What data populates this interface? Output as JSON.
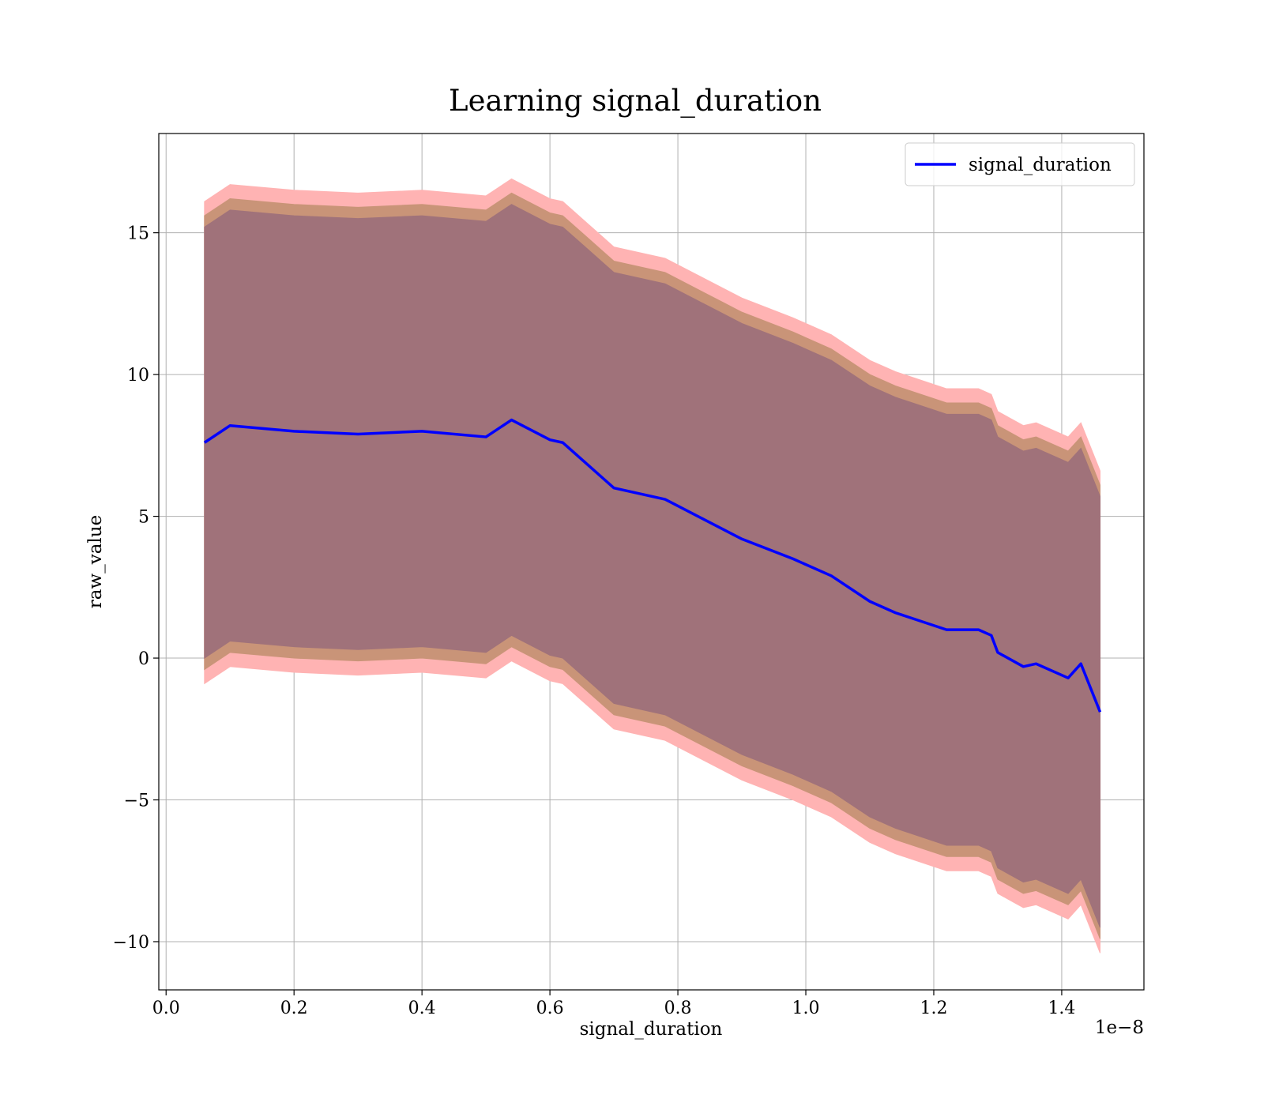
{
  "chart_data": {
    "type": "line",
    "title": "Learning signal_duration",
    "xlabel": "signal_duration",
    "ylabel": "raw_value",
    "x_offset_text": "1e−8",
    "x": [
      0.06,
      0.1,
      0.2,
      0.3,
      0.4,
      0.5,
      0.54,
      0.6,
      0.62,
      0.66,
      0.7,
      0.78,
      0.84,
      0.9,
      0.98,
      1.04,
      1.1,
      1.14,
      1.22,
      1.27,
      1.29,
      1.3,
      1.34,
      1.36,
      1.41,
      1.43,
      1.46
    ],
    "series": [
      {
        "name": "signal_duration",
        "color": "#0000ff",
        "values": [
          7.6,
          8.2,
          8.0,
          7.9,
          8.0,
          7.8,
          8.4,
          7.7,
          7.6,
          6.8,
          6.0,
          5.6,
          4.9,
          4.2,
          3.5,
          2.9,
          2.0,
          1.6,
          1.0,
          1.0,
          0.8,
          0.2,
          -0.3,
          -0.2,
          -0.7,
          -0.2,
          -1.9
        ]
      }
    ],
    "bands": [
      {
        "color": "#ffb3b3",
        "upper": [
          16.1,
          16.7,
          16.5,
          16.4,
          16.5,
          16.3,
          16.9,
          16.2,
          16.1,
          15.3,
          14.5,
          14.1,
          13.4,
          12.7,
          12.0,
          11.4,
          10.5,
          10.1,
          9.5,
          9.5,
          9.3,
          8.7,
          8.2,
          8.3,
          7.8,
          8.3,
          6.6
        ],
        "lower": [
          -0.9,
          -0.3,
          -0.5,
          -0.6,
          -0.5,
          -0.7,
          -0.1,
          -0.8,
          -0.9,
          -1.7,
          -2.5,
          -2.9,
          -3.6,
          -4.3,
          -5.0,
          -5.6,
          -6.5,
          -6.9,
          -7.5,
          -7.5,
          -7.7,
          -8.3,
          -8.8,
          -8.7,
          -9.2,
          -8.7,
          -10.4
        ]
      },
      {
        "color": "#c99478",
        "upper": [
          15.6,
          16.2,
          16.0,
          15.9,
          16.0,
          15.8,
          16.4,
          15.7,
          15.6,
          14.8,
          14.0,
          13.6,
          12.9,
          12.2,
          11.5,
          10.9,
          10.0,
          9.6,
          9.0,
          9.0,
          8.8,
          8.2,
          7.7,
          7.8,
          7.3,
          7.8,
          6.1
        ],
        "lower": [
          -0.4,
          0.2,
          0.0,
          -0.1,
          0.0,
          -0.2,
          0.4,
          -0.3,
          -0.4,
          -1.2,
          -2.0,
          -2.4,
          -3.1,
          -3.8,
          -4.5,
          -5.1,
          -6.0,
          -6.4,
          -7.0,
          -7.0,
          -7.2,
          -7.8,
          -8.3,
          -8.2,
          -8.7,
          -8.2,
          -9.9
        ]
      },
      {
        "color": "#a0727a",
        "upper": [
          15.2,
          15.8,
          15.6,
          15.5,
          15.6,
          15.4,
          16.0,
          15.3,
          15.2,
          14.4,
          13.6,
          13.2,
          12.5,
          11.8,
          11.1,
          10.5,
          9.6,
          9.2,
          8.6,
          8.6,
          8.4,
          7.8,
          7.3,
          7.4,
          6.9,
          7.4,
          5.7
        ],
        "lower": [
          0.0,
          0.6,
          0.4,
          0.3,
          0.4,
          0.2,
          0.8,
          0.1,
          0.0,
          -0.8,
          -1.6,
          -2.0,
          -2.7,
          -3.4,
          -4.1,
          -4.7,
          -5.6,
          -6.0,
          -6.6,
          -6.6,
          -6.8,
          -7.4,
          -7.9,
          -7.8,
          -8.3,
          -7.8,
          -9.5
        ]
      }
    ],
    "xlim": [
      -0.0114,
      1.5285
    ],
    "ylim": [
      -11.7,
      18.5
    ],
    "xticks": [
      {
        "value": 0,
        "label": "0.0"
      },
      0.2,
      0.4,
      0.6,
      0.8,
      {
        "value": 1,
        "label": "1.0"
      },
      1.2,
      1.4
    ],
    "yticks": [
      {
        "value": -10,
        "label": "−10"
      },
      {
        "value": -5,
        "label": "−5"
      },
      0,
      5,
      10,
      15
    ],
    "grid": true,
    "legend": "upper right"
  }
}
